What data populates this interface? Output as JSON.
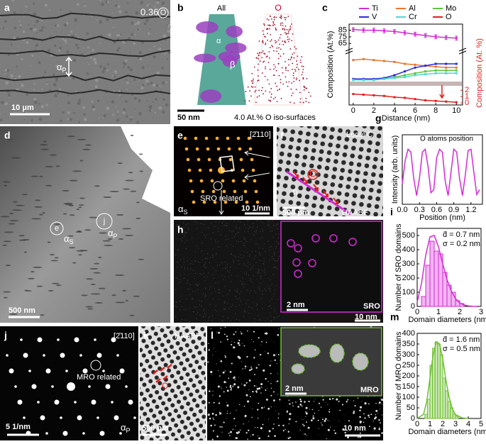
{
  "panels": {
    "a": {
      "label": "a",
      "iso": "0.36",
      "iso_element": "O",
      "phase": {
        "symbol": "α",
        "sub": "P"
      },
      "scale_bar": "10 μm"
    },
    "b": {
      "label": "b",
      "left_title": "All",
      "right_title": "O",
      "alpha": "α",
      "beta": "β",
      "scale_bar": "50 nm",
      "caption": "4.0 At.% O iso-surfaces"
    },
    "d": {
      "label": "d",
      "mark_e": "e",
      "phase_s": {
        "symbol": "α",
        "sub": "S"
      },
      "mark_j": "j",
      "phase_p": {
        "symbol": "α",
        "sub": "P"
      },
      "scale_bar": "500 nm"
    },
    "e": {
      "label": "e",
      "zone_axis": "[2̄110]",
      "note": "SRO related",
      "phase": {
        "symbol": "α",
        "sub": "S"
      },
      "scale_bar": "10 1/nm"
    },
    "f": {
      "label": "f",
      "corner": "Local C",
      "o": "O",
      "ti": "Ti",
      "scale_bar": "500 pm",
      "mode": "HAABF"
    },
    "h": {
      "label": "h",
      "inset_scale": "2 nm",
      "inset_title": "SRO",
      "scale_bar": "10 nm"
    },
    "j": {
      "label": "j",
      "zone_axis": "[2̄110]",
      "note": "MRO related",
      "scale_bar": "5 1/nm",
      "phase": {
        "symbol": "α",
        "sub": "P"
      }
    },
    "k": {
      "label": "k",
      "mode": "HAABF",
      "o": "O",
      "scale_bar": "500 pm"
    },
    "l": {
      "label": "l",
      "inset_scale": "2 nm",
      "inset_title": "MRO",
      "scale_bar": "10 nm"
    }
  },
  "chart_data": [
    {
      "type": "line",
      "panel_label": "c",
      "ylabel": "Composition (At.%)",
      "y2label": "Composition (At. %)",
      "xlabel": "Distance (nm)",
      "x": [
        0,
        1,
        2,
        3,
        4,
        5,
        6,
        7,
        8,
        9,
        10
      ],
      "xlim": [
        -0.4,
        10.6
      ],
      "xticks": [
        0,
        2,
        4,
        6,
        8,
        10
      ],
      "ylim": [
        0,
        15
      ],
      "ylim_upper": [
        60,
        92
      ],
      "yticks": [
        65,
        75,
        85
      ],
      "y2lim": [
        0,
        2.6
      ],
      "y2ticks": [
        0,
        1,
        2
      ],
      "y2color": "#e02020",
      "series": [
        {
          "name": "Ti",
          "color": "#d42bd4",
          "values": [
            86,
            85,
            85,
            84,
            83,
            81,
            79,
            77,
            75,
            74,
            73
          ],
          "errors": [
            3,
            3,
            3,
            3,
            3,
            3,
            3,
            3,
            3,
            3,
            3
          ]
        },
        {
          "name": "Al",
          "color": "#e8772e",
          "values": [
            11,
            11.5,
            11,
            10.5,
            10,
            9,
            8.5,
            8,
            7.5,
            7,
            7
          ]
        },
        {
          "name": "Mo",
          "color": "#5cc63a",
          "values": [
            0.5,
            0.5,
            0.5,
            1,
            2,
            3,
            4,
            5,
            5.5,
            5.5,
            5.5
          ]
        },
        {
          "name": "V",
          "color": "#2b2bd6",
          "values": [
            1,
            1,
            1,
            1.5,
            3,
            5,
            7,
            8,
            9,
            9,
            9
          ]
        },
        {
          "name": "Cr",
          "color": "#4fd6d6",
          "values": [
            0.5,
            0.5,
            0.5,
            1,
            1.5,
            2,
            3,
            3.5,
            4,
            4,
            4
          ]
        },
        {
          "name": "O",
          "color": "#e02020",
          "axis": "y2",
          "values": [
            1.4,
            1.3,
            1.2,
            1.1,
            0.9,
            0.8,
            0.6,
            0.4,
            0.3,
            0.2,
            0.1
          ]
        }
      ]
    },
    {
      "type": "line",
      "panel_label": "g",
      "ylabel": "Intensity (arb. units)",
      "xlabel": "Position (nm)",
      "annotation": "O atoms position",
      "x": [
        0,
        0.05,
        0.1,
        0.15,
        0.2,
        0.25,
        0.3,
        0.35,
        0.4,
        0.45,
        0.5,
        0.55,
        0.6,
        0.65,
        0.7,
        0.75,
        0.8,
        0.85,
        0.9,
        0.95,
        1.0,
        1.05,
        1.1,
        1.15,
        1.2,
        1.25,
        1.3,
        1.35
      ],
      "xlim": [
        0,
        1.4
      ],
      "xticks": [
        {
          "value": 0,
          "label": "0.0"
        },
        0.3,
        0.6,
        0.9,
        1.2
      ],
      "ylim": [
        0,
        1.1
      ],
      "series": [
        {
          "color": "#d42bd4",
          "values": [
            0.3,
            0.7,
            0.9,
            0.85,
            0.4,
            0.1,
            0.4,
            0.85,
            0.9,
            0.6,
            0.15,
            0.2,
            0.75,
            0.9,
            0.85,
            0.35,
            0.1,
            0.5,
            0.9,
            0.85,
            0.4,
            0.1,
            0.45,
            0.88,
            0.9,
            0.5,
            0.12,
            0.2
          ]
        }
      ]
    },
    {
      "type": "histogram",
      "panel_label": "i",
      "ylabel": "Number of SRO domains",
      "xlabel": "Domain diameters (nm)",
      "annotations": [
        "d̄ = 0.7 nm",
        "σ = 0.2 nm"
      ],
      "color": "#d42bd4",
      "bins": [
        0.2,
        0.4,
        0.6,
        0.8,
        1.0,
        1.2,
        1.4,
        1.6,
        1.8,
        2.0,
        2.2
      ],
      "counts": [
        70,
        290,
        460,
        390,
        370,
        240,
        150,
        100,
        40,
        20
      ],
      "fit": {
        "x": [
          0,
          0.2,
          0.4,
          0.6,
          0.8,
          1.0,
          1.2,
          1.4,
          1.6,
          1.8,
          2.0,
          2.2,
          2.4,
          2.6,
          2.8
        ],
        "values": [
          30,
          160,
          360,
          490,
          500,
          420,
          300,
          190,
          110,
          55,
          25,
          10,
          4,
          1,
          0
        ]
      },
      "xlim": [
        0,
        3
      ],
      "xticks": [
        0,
        1,
        2,
        3
      ],
      "ylim": [
        0,
        550
      ],
      "yticks": [
        0,
        100,
        200,
        300,
        400,
        500
      ]
    },
    {
      "type": "histogram",
      "panel_label": "m",
      "ylabel": "Number of MRO domains",
      "xlabel": "Domain diameters (nm)",
      "annotations": [
        "d̄ = 1.6 nm",
        "σ = 0.5 nm"
      ],
      "color": "#6cbf2e",
      "bins": [
        0.6,
        0.8,
        1.0,
        1.2,
        1.4,
        1.6,
        1.8,
        2.0,
        2.2,
        2.4,
        2.6,
        2.8,
        3.0,
        3.2
      ],
      "counts": [
        20,
        90,
        250,
        330,
        360,
        350,
        300,
        190,
        130,
        80,
        50,
        20,
        10
      ],
      "fit": {
        "x": [
          0,
          0.5,
          0.75,
          1.0,
          1.25,
          1.5,
          1.75,
          2.0,
          2.25,
          2.5,
          2.75,
          3.0,
          3.5,
          4.0
        ],
        "values": [
          0,
          20,
          80,
          190,
          300,
          360,
          350,
          280,
          180,
          100,
          45,
          18,
          3,
          0
        ]
      },
      "xlim": [
        0,
        5
      ],
      "xticks": [
        0,
        1,
        2,
        3,
        4,
        5
      ],
      "ylim": [
        0,
        400
      ],
      "yticks": [
        0,
        50,
        100,
        150,
        200,
        250,
        300,
        350,
        400
      ]
    }
  ]
}
